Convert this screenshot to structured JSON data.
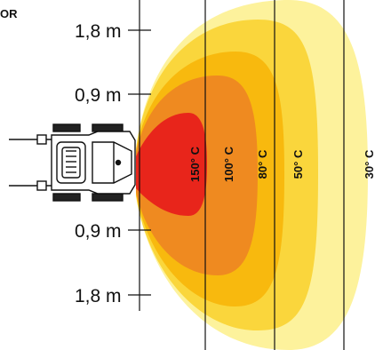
{
  "corner_text": "OR",
  "axis": {
    "labels": [
      "1,8 m",
      "0,9 m",
      "0,9 m",
      "1,8 m"
    ]
  },
  "zones": [
    {
      "label": "150° C",
      "color": "#e8251b"
    },
    {
      "label": "100° C",
      "color": "#ef8a20"
    },
    {
      "label": "80° C",
      "color": "#f8b90e"
    },
    {
      "label": "50° C",
      "color": "#fad63c"
    },
    {
      "label": "30° C",
      "color": "#fdf29c"
    }
  ],
  "machine": {
    "icon": "loader-machine-icon"
  }
}
